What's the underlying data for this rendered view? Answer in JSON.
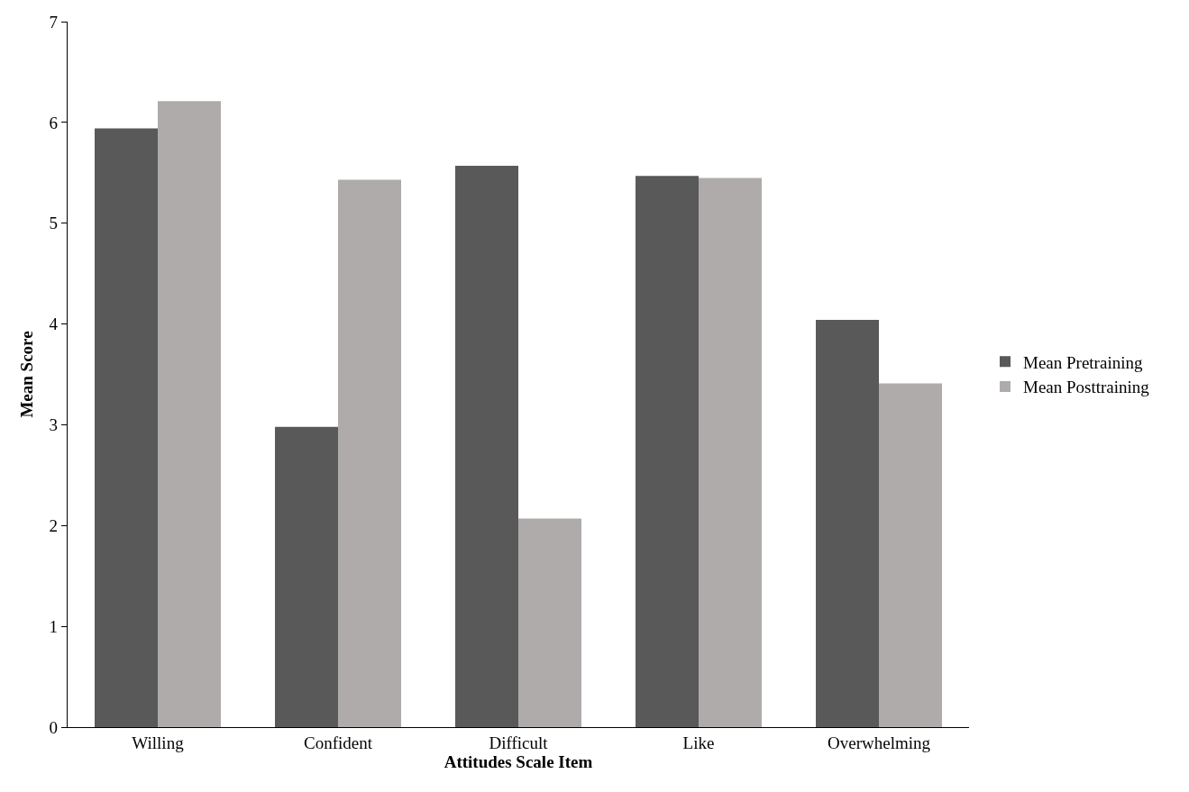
{
  "chart_data": {
    "type": "bar",
    "xlabel": "Attitudes Scale Item",
    "ylabel": "Mean Score",
    "categories": [
      "Willing",
      "Confident",
      "Difficult",
      "Like",
      "Overwhelming"
    ],
    "series": [
      {
        "name": "Mean Pretraining",
        "color": "#595959",
        "values": [
          5.94,
          2.98,
          5.57,
          5.47,
          4.04
        ]
      },
      {
        "name": "Mean Posttraining",
        "color": "#afabab",
        "values": [
          6.21,
          5.43,
          2.07,
          5.45,
          3.41
        ]
      }
    ],
    "ylim": [
      0,
      7
    ],
    "yticks": [
      0,
      1,
      2,
      3,
      4,
      5,
      6,
      7
    ],
    "grid": false,
    "legend": "right"
  }
}
